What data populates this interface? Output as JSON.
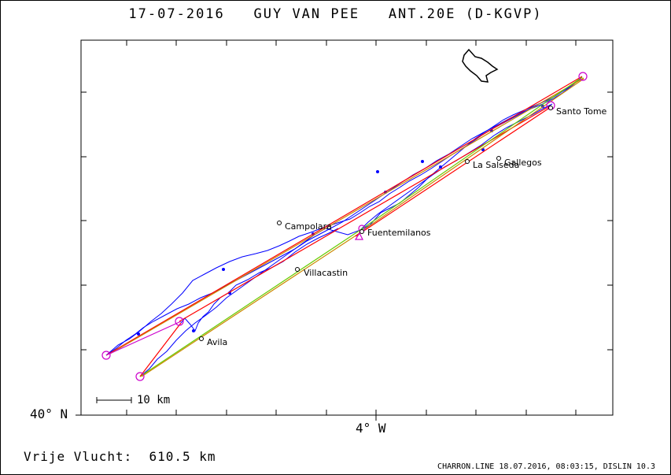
{
  "header": {
    "date": "17-07-2016",
    "pilot": "GUY VAN PEE",
    "aircraft": "ANT.20E (D-KGVP)"
  },
  "axes": {
    "lat_label": "40° N",
    "lon_label": "4° W"
  },
  "scale": {
    "label": "10 km"
  },
  "places": [
    {
      "name": "Santo Tome"
    },
    {
      "name": "Gallegos"
    },
    {
      "name": "La Salseda"
    },
    {
      "name": "Campolara"
    },
    {
      "name": "Fuentemilanos"
    },
    {
      "name": "Villacastin"
    },
    {
      "name": "Avila"
    }
  ],
  "footer": {
    "distance_label": "Vrije Vlucht:",
    "distance_value": "610.5 km",
    "source": "CHARRON.LINE 18.07.2016, 08:03:15, DISLIN 10.3"
  },
  "colors": {
    "track": "#0000ff",
    "task_red": "#ff0000",
    "task_orange": "#cc8800",
    "task_green": "#66cc00",
    "turnpoint": "#cc00cc"
  }
}
